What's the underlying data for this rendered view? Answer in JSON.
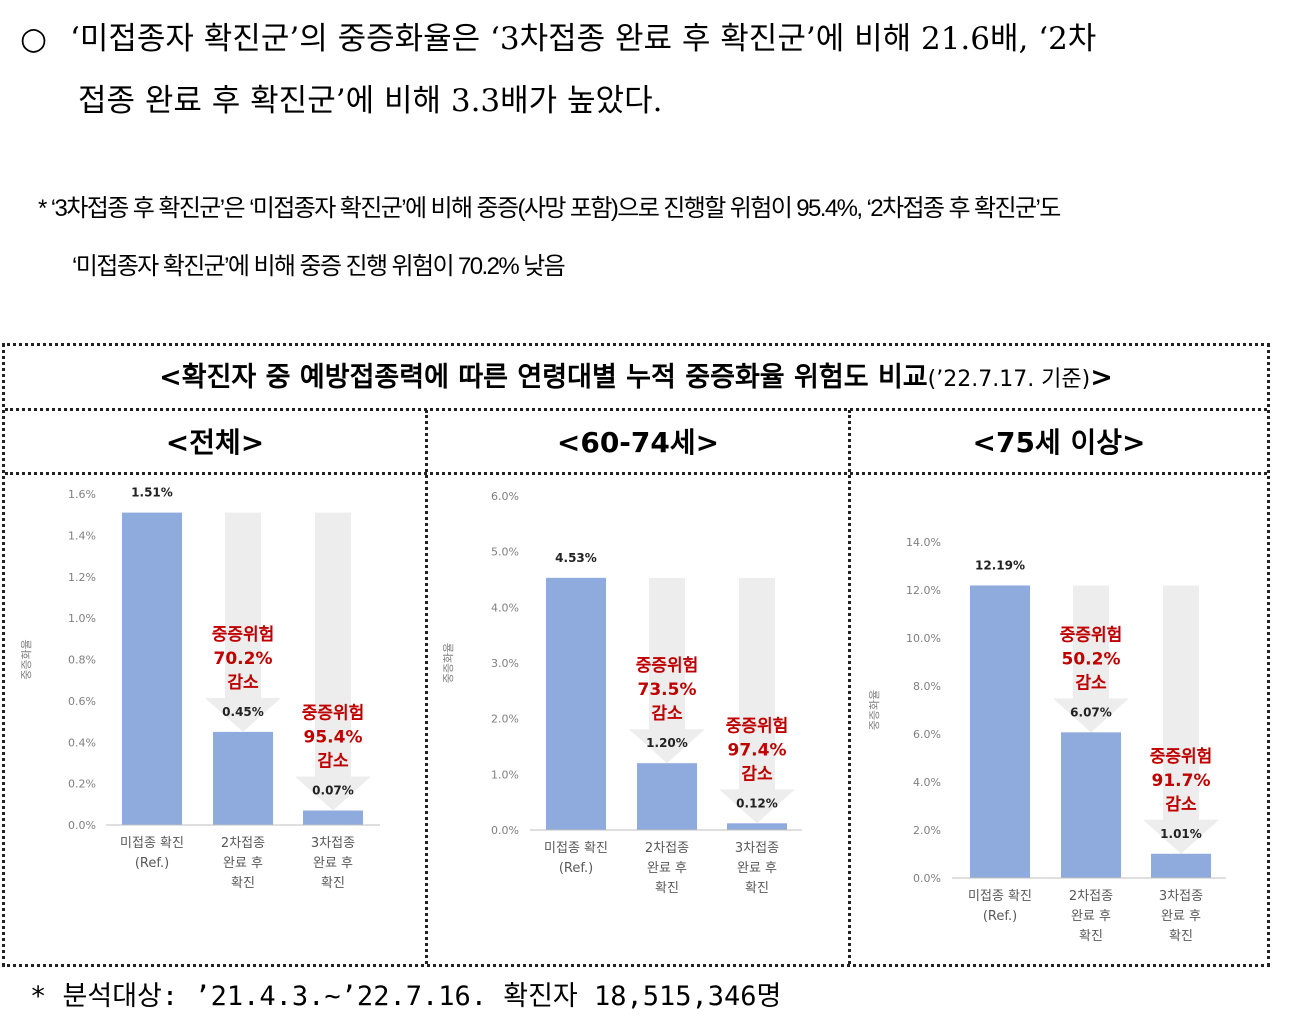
{
  "intro": {
    "bullet": "○",
    "line1": "‘미접종자 확진군’의 중증화율은 ‘3차접종 완료 후 확진군’에 비해 21.6배, ‘2차",
    "line2": "접종 완료 후 확진군’에 비해 3.3배가 높았다."
  },
  "note": {
    "line1": "* ‘3차접종 후 확진군’은 ‘미접종자 확진군’에 비해 중증(사망 포함)으로 진행할 위험이 95.4%, ‘2차접종 후 확진군’도",
    "line2": "‘미접종자 확진군’에 비해 중증 진행 위험이 70.2% 낮음"
  },
  "figure": {
    "title": "<확진자 중 예방접종력에 따른 연령대별 누적 중증화율 위험도 비교",
    "title_date": "(’22.7.17. 기준)",
    "title_end": ">"
  },
  "footnote": "* 분석대상: ’21.4.3.~’22.7.16. 확진자 18,515,346명",
  "colors": {
    "bar": "#8faadc",
    "arrow": "#ededed",
    "red": "#c00000",
    "axis": "#7f7f7f"
  },
  "chart_data": [
    {
      "type": "bar",
      "title": "<전체>",
      "ylabel": "중증화율",
      "categories": [
        "미접종 확진\n(Ref.)",
        "2차접종\n완료 후\n확진",
        "3차접종\n완료 후\n확진"
      ],
      "values": [
        1.51,
        0.45,
        0.07
      ],
      "value_labels": [
        "1.51%",
        "0.45%",
        "0.07%"
      ],
      "yticks": [
        "0.0%",
        "0.2%",
        "0.4%",
        "0.6%",
        "0.8%",
        "1.0%",
        "1.2%",
        "1.4%",
        "1.6%"
      ],
      "ylim": [
        0,
        1.6
      ],
      "reductions": [
        "중증위험\n70.2%\n감소",
        "중증위험\n95.4%\n감소"
      ]
    },
    {
      "type": "bar",
      "title": "<60-74세>",
      "ylabel": "중증화율",
      "categories": [
        "미접종 확진\n(Ref.)",
        "2차접종\n완료 후\n확진",
        "3차접종\n완료 후\n확진"
      ],
      "values": [
        4.53,
        1.2,
        0.12
      ],
      "value_labels": [
        "4.53%",
        "1.20%",
        "0.12%"
      ],
      "yticks": [
        "0.0%",
        "1.0%",
        "2.0%",
        "3.0%",
        "4.0%",
        "5.0%",
        "6.0%"
      ],
      "ylim": [
        0,
        6.0
      ],
      "reductions": [
        "중증위험\n73.5%\n감소",
        "중증위험\n97.4%\n감소"
      ]
    },
    {
      "type": "bar",
      "title": "<75세 이상>",
      "ylabel": "중증화율",
      "categories": [
        "미접종 확진\n(Ref.)",
        "2차접종\n완료 후\n확진",
        "3차접종\n완료 후\n확진"
      ],
      "values": [
        12.19,
        6.07,
        1.01
      ],
      "value_labels": [
        "12.19%",
        "6.07%",
        "1.01%"
      ],
      "yticks": [
        "0.0%",
        "2.0%",
        "4.0%",
        "6.0%",
        "8.0%",
        "10.0%",
        "12.0%",
        "14.0%"
      ],
      "ylim": [
        0,
        14.0
      ],
      "reductions": [
        "중증위험\n50.2%\n감소",
        "중증위험\n91.7%\n감소"
      ]
    }
  ]
}
